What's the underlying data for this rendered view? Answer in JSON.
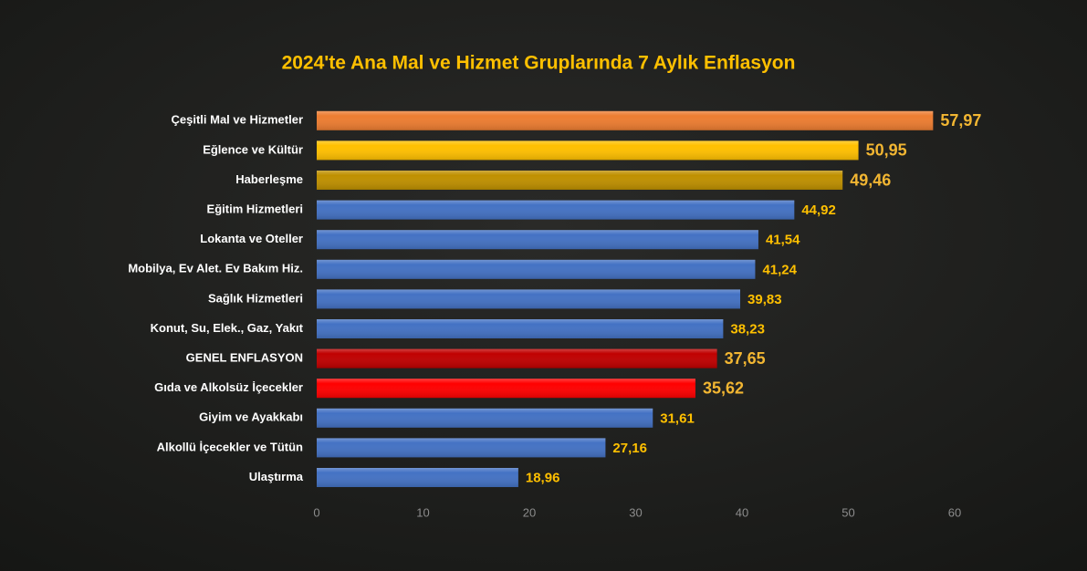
{
  "chart_data": {
    "type": "bar",
    "orientation": "horizontal",
    "title": "2024'te Ana Mal ve Hizmet Gruplarında 7 Aylık Enflasyon",
    "categories": [
      "Çeşitli Mal ve Hizmetler",
      "Eğlence ve Kültür",
      "Haberleşme",
      "Eğitim Hizmetleri",
      "Lokanta ve Oteller",
      "Mobilya, Ev Alet. Ev Bakım Hiz.",
      "Sağlık Hizmetleri",
      "Konut, Su, Elek., Gaz, Yakıt",
      "GENEL ENFLASYON",
      "Gıda ve Alkolsüz İçecekler",
      "Giyim ve Ayakkabı",
      "Alkollü İçecekler ve Tütün",
      "Ulaştırma"
    ],
    "values": [
      57.97,
      50.95,
      49.46,
      44.92,
      41.54,
      41.24,
      39.83,
      38.23,
      37.65,
      35.62,
      31.61,
      27.16,
      18.96
    ],
    "value_labels": [
      "57,97",
      "50,95",
      "49,46",
      "44,92",
      "41,54",
      "41,24",
      "39,83",
      "38,23",
      "37,65",
      "35,62",
      "31,61",
      "27,16",
      "18,96"
    ],
    "colors": [
      "#ed7d31",
      "#ffc000",
      "#bf9000",
      "#4472c4",
      "#4472c4",
      "#4472c4",
      "#4472c4",
      "#4472c4",
      "#c00000",
      "#ff0000",
      "#4472c4",
      "#4472c4",
      "#4472c4"
    ],
    "xlim": [
      0,
      60
    ],
    "xticks": [
      0,
      10,
      20,
      30,
      40,
      50,
      60
    ]
  }
}
